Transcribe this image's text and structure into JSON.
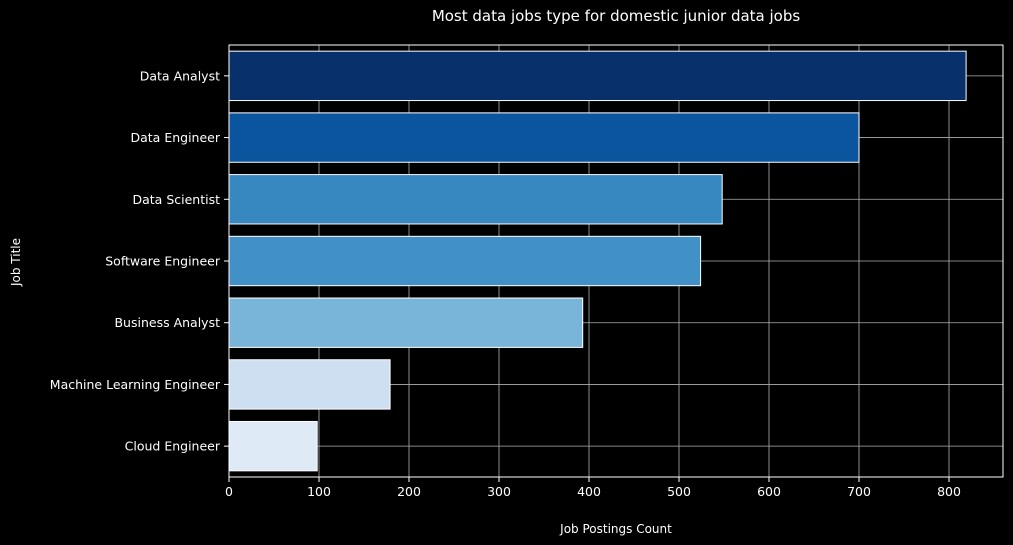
{
  "chart_data": {
    "type": "bar",
    "orientation": "horizontal",
    "title": "Most data jobs type for domestic junior data jobs",
    "xlabel": "Job Postings Count",
    "ylabel": "Job Title",
    "categories": [
      "Data Analyst",
      "Data Engineer",
      "Data Scientist",
      "Software Engineer",
      "Business Analyst",
      "Machine Learning Engineer",
      "Cloud Engineer"
    ],
    "values": [
      819,
      700,
      548,
      524,
      393,
      179,
      98
    ],
    "bar_colors": [
      "#08306b",
      "#0b559f",
      "#3787c0",
      "#4191c6",
      "#79b5d9",
      "#cddff0",
      "#deebf7"
    ],
    "xlim": [
      0,
      860
    ],
    "xticks": [
      0,
      100,
      200,
      300,
      400,
      500,
      600,
      700,
      800
    ],
    "grid": true,
    "background_color": "#000000",
    "text_color": "#ffffff",
    "grid_color": "#b0b0b0",
    "edge_color": "#ffffff"
  }
}
